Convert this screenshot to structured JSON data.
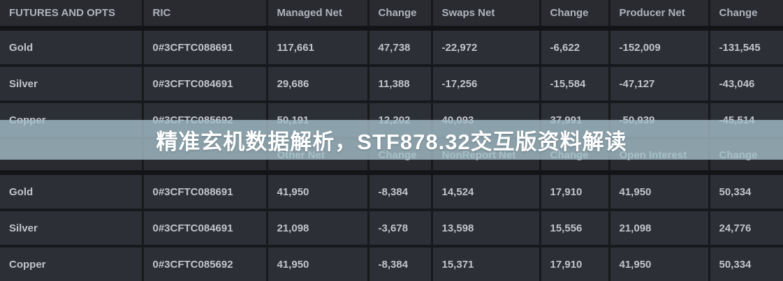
{
  "watermark": {
    "text": "精准玄机数据解析，STF878.32交互版资料解读",
    "band_color": "rgba(167,193,204,0.78)",
    "text_color": "#ffffff"
  },
  "colors": {
    "page_background": "#17191d",
    "cell_background": "#2c2f36",
    "header_background": "#292b31",
    "header_text": "#b0b4ba",
    "cell_text": "#c1c4c8"
  },
  "tables": [
    {
      "name": "futures-and-opts-top",
      "columns": [
        "FUTURES AND OPTS",
        "RIC",
        "Managed Net",
        "Change",
        "Swaps Net",
        "Change",
        "Producer Net",
        "Change"
      ],
      "rows": [
        [
          "Gold",
          "0#3CFTC088691",
          "117,661",
          "47,738",
          "-22,972",
          "-6,622",
          "-152,009",
          "-131,545"
        ],
        [
          "Silver",
          "0#3CFTC084691",
          "29,686",
          "11,388",
          "-17,256",
          "-15,584",
          "-47,127",
          "-43,046"
        ],
        [
          "Copper",
          "0#3CFTC085692",
          "50,191",
          "12,202",
          "40,093",
          "37,991",
          "-50,939",
          "-45,514"
        ]
      ]
    },
    {
      "name": "futures-and-opts-bottom",
      "columns": [
        "",
        "",
        "Other Net",
        "Change",
        "NonReport Net",
        "Change",
        "Open Interest",
        "Change"
      ],
      "rows": [
        [
          "Gold",
          "0#3CFTC088691",
          "41,950",
          "-8,384",
          "14,524",
          "17,910",
          "41,950",
          "50,334"
        ],
        [
          "Silver",
          "0#3CFTC084691",
          "21,098",
          "-3,678",
          "13,598",
          "15,556",
          "21,098",
          "24,776"
        ],
        [
          "Copper",
          "0#3CFTC085692",
          "41,950",
          "-8,384",
          "15,371",
          "17,910",
          "41,950",
          "50,334"
        ]
      ]
    }
  ]
}
